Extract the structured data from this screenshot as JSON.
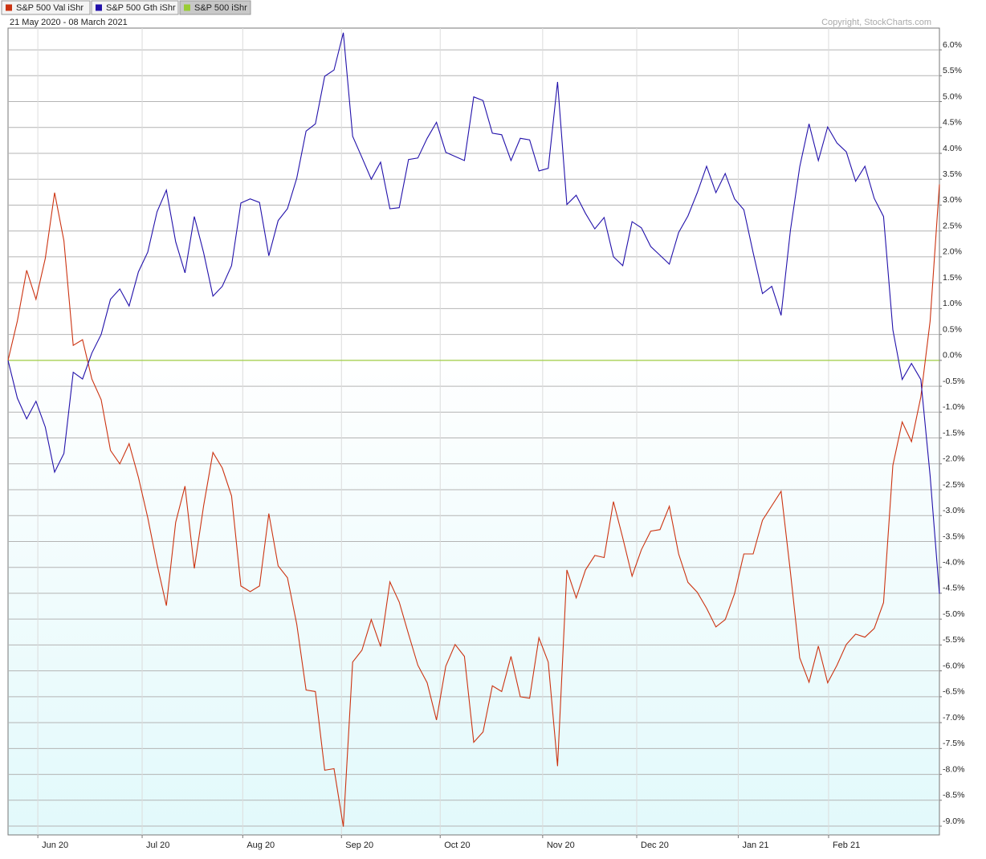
{
  "chart_data": {
    "type": "line",
    "subtitle": "21 May 2020 - 08 March 2021",
    "annotation": "Copyright, StockCharts.com",
    "ylim": [
      -9.17,
      6.42
    ],
    "yticks": [
      {
        "value": 6.0,
        "label": "6.0%"
      },
      {
        "value": 5.5,
        "label": "5.5%"
      },
      {
        "value": 5.0,
        "label": "5.0%"
      },
      {
        "value": 4.5,
        "label": "4.5%"
      },
      {
        "value": 4.0,
        "label": "4.0%"
      },
      {
        "value": 3.5,
        "label": "3.5%"
      },
      {
        "value": 3.0,
        "label": "3.0%"
      },
      {
        "value": 2.5,
        "label": "2.5%"
      },
      {
        "value": 2.0,
        "label": "2.0%"
      },
      {
        "value": 1.5,
        "label": "1.5%"
      },
      {
        "value": 1.0,
        "label": "1.0%"
      },
      {
        "value": 0.5,
        "label": "0.5%"
      },
      {
        "value": 0,
        "label": "0.0%"
      },
      {
        "value": -0.5,
        "label": "-0.5%"
      },
      {
        "value": -1.0,
        "label": "-1.0%"
      },
      {
        "value": -1.5,
        "label": "-1.5%"
      },
      {
        "value": -2.0,
        "label": "-2.0%"
      },
      {
        "value": -2.5,
        "label": "-2.5%"
      },
      {
        "value": -3.0,
        "label": "-3.0%"
      },
      {
        "value": -3.5,
        "label": "-3.5%"
      },
      {
        "value": -4.0,
        "label": "-4.0%"
      },
      {
        "value": -4.5,
        "label": "-4.5%"
      },
      {
        "value": -5.0,
        "label": "-5.0%"
      },
      {
        "value": -5.5,
        "label": "-5.5%"
      },
      {
        "value": -6.0,
        "label": "-6.0%"
      },
      {
        "value": -6.5,
        "label": "-6.5%"
      },
      {
        "value": -7.0,
        "label": "-7.0%"
      },
      {
        "value": -7.5,
        "label": "-7.5%"
      },
      {
        "value": -8.0,
        "label": "-8.0%"
      },
      {
        "value": -8.5,
        "label": "-8.5%"
      },
      {
        "value": -9.0,
        "label": "-9.0%"
      }
    ],
    "xticks": [
      {
        "value": 3.2,
        "label": "Jun 20"
      },
      {
        "value": 14.4,
        "label": "Jul 20"
      },
      {
        "value": 25.2,
        "label": "Aug 20"
      },
      {
        "value": 35.8,
        "label": "Sep 20"
      },
      {
        "value": 46.4,
        "label": "Oct 20"
      },
      {
        "value": 57.4,
        "label": "Nov 20"
      },
      {
        "value": 67.5,
        "label": "Dec 20"
      },
      {
        "value": 78.4,
        "label": "Jan 21"
      },
      {
        "value": 88.1,
        "label": "Feb 21"
      }
    ],
    "grid": true,
    "series": [
      {
        "name": "S&P 500 Val iShr",
        "color": "#cc3311",
        "values": [
          0,
          0.76,
          1.74,
          1.18,
          1.97,
          3.24,
          2.31,
          0.29,
          0.4,
          -0.36,
          -0.76,
          -1.74,
          -2.0,
          -1.61,
          -2.26,
          -3.04,
          -3.94,
          -4.74,
          -3.13,
          -2.43,
          -4.02,
          -2.81,
          -1.78,
          -2.08,
          -2.62,
          -4.36,
          -4.47,
          -4.36,
          -2.96,
          -3.97,
          -4.2,
          -5.1,
          -6.37,
          -6.4,
          -7.92,
          -7.89,
          -9.01,
          -5.83,
          -5.6,
          -5.01,
          -5.53,
          -4.28,
          -4.67,
          -5.29,
          -5.89,
          -6.23,
          -6.95,
          -5.91,
          -5.49,
          -5.72,
          -7.38,
          -7.18,
          -6.29,
          -6.4,
          -5.72,
          -6.5,
          -6.53,
          -5.36,
          -5.83,
          -7.84,
          -4.05,
          -4.59,
          -4.05,
          -3.77,
          -3.81,
          -2.73,
          -3.43,
          -4.17,
          -3.66,
          -3.3,
          -3.27,
          -2.82,
          -3.74,
          -4.29,
          -4.48,
          -4.79,
          -5.15,
          -5.01,
          -4.51,
          -3.74,
          -3.74,
          -3.09,
          -2.81,
          -2.53,
          -4.09,
          -5.75,
          -6.22,
          -5.52,
          -6.23,
          -5.89,
          -5.49,
          -5.29,
          -5.35,
          -5.18,
          -4.68,
          -2.03,
          -1.19,
          -1.57,
          -0.71,
          0.76,
          3.4
        ]
      },
      {
        "name": "S&P 500 Gth iShr",
        "color": "#2211aa",
        "values": [
          0,
          -0.73,
          -1.13,
          -0.79,
          -1.29,
          -2.16,
          -1.8,
          -0.23,
          -0.36,
          0.14,
          0.5,
          1.18,
          1.38,
          1.05,
          1.71,
          2.09,
          2.87,
          3.29,
          2.29,
          1.69,
          2.78,
          2.08,
          1.24,
          1.43,
          1.83,
          3.04,
          3.12,
          3.05,
          2.02,
          2.7,
          2.93,
          3.52,
          4.43,
          4.57,
          5.49,
          5.61,
          6.33,
          4.33,
          3.92,
          3.5,
          3.83,
          2.93,
          2.95,
          3.88,
          3.91,
          4.29,
          4.6,
          4.02,
          3.94,
          3.86,
          5.09,
          5.02,
          4.39,
          4.36,
          3.86,
          4.29,
          4.26,
          3.66,
          3.71,
          5.38,
          3.01,
          3.19,
          2.84,
          2.54,
          2.76,
          2.0,
          1.83,
          2.68,
          2.56,
          2.2,
          2.03,
          1.86,
          2.47,
          2.79,
          3.24,
          3.75,
          3.24,
          3.61,
          3.12,
          2.91,
          2.08,
          1.29,
          1.43,
          0.87,
          2.51,
          3.74,
          4.57,
          3.86,
          4.51,
          4.2,
          4.03,
          3.46,
          3.75,
          3.13,
          2.78,
          0.59,
          -0.37,
          -0.06,
          -0.37,
          -2.23,
          -4.51
        ]
      },
      {
        "name": "S&P 500 iShr",
        "color": "#99cc33",
        "values": [
          0,
          0,
          0,
          0,
          0,
          0,
          0,
          0,
          0,
          0,
          0,
          0,
          0,
          0,
          0,
          0,
          0,
          0,
          0,
          0,
          0,
          0,
          0,
          0,
          0,
          0,
          0,
          0,
          0,
          0,
          0,
          0,
          0,
          0,
          0,
          0,
          0,
          0,
          0,
          0,
          0,
          0,
          0,
          0,
          0,
          0,
          0,
          0,
          0,
          0,
          0,
          0,
          0,
          0,
          0,
          0,
          0,
          0,
          0,
          0,
          0,
          0,
          0,
          0,
          0,
          0,
          0,
          0,
          0,
          0,
          0,
          0,
          0,
          0,
          0,
          0,
          0,
          0,
          0,
          0,
          0,
          0,
          0,
          0,
          0,
          0,
          0,
          0,
          0,
          0,
          0,
          0,
          0,
          0,
          0,
          0,
          0,
          0,
          0,
          0,
          0
        ]
      }
    ]
  }
}
